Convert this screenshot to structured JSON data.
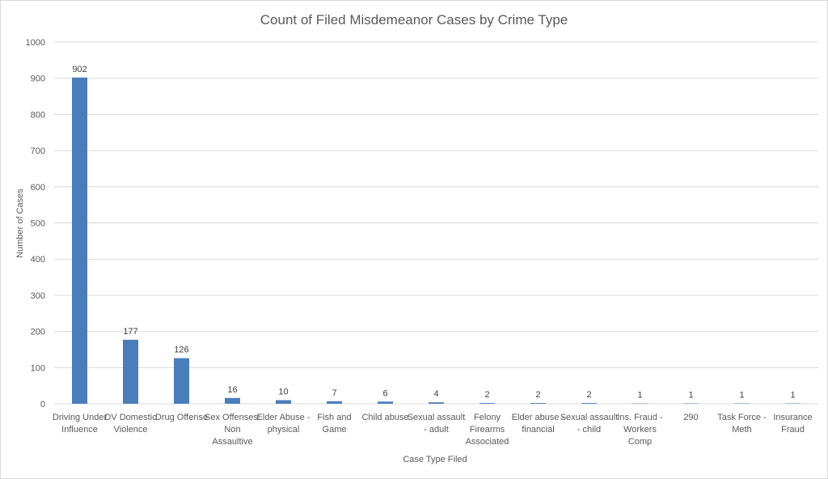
{
  "chart_data": {
    "type": "bar",
    "title": "Count of Filed Misdemeanor Cases by Crime Type",
    "xlabel": "Case Type  Filed",
    "ylabel": "Number  of Cases",
    "ylim": [
      0,
      1000
    ],
    "yticks": [
      0,
      100,
      200,
      300,
      400,
      500,
      600,
      700,
      800,
      900,
      1000
    ],
    "grid": true,
    "legend": "none",
    "bar_color": "#4a7ebb",
    "categories": [
      [
        "Driving Under",
        "Influence"
      ],
      [
        "DV Domestic",
        "Violence"
      ],
      [
        "Drug Offense"
      ],
      [
        "Sex Offenses:",
        "Non",
        "Assaultive"
      ],
      [
        "Elder Abuse -",
        "physical"
      ],
      [
        "Fish and",
        "Game"
      ],
      [
        "Child abuse"
      ],
      [
        "Sexual assault",
        "- adult"
      ],
      [
        "Felony",
        "Firearms",
        "Associated"
      ],
      [
        "Elder abuse -",
        "financial"
      ],
      [
        "Sexual assault",
        "- child"
      ],
      [
        "Ins. Fraud -",
        "Workers",
        "Comp"
      ],
      [
        "290"
      ],
      [
        "Task Force -",
        "Meth"
      ],
      [
        "Insurance",
        "Fraud"
      ]
    ],
    "values": [
      902,
      177,
      126,
      16,
      10,
      7,
      6,
      4,
      2,
      2,
      2,
      1,
      1,
      1,
      1
    ]
  }
}
